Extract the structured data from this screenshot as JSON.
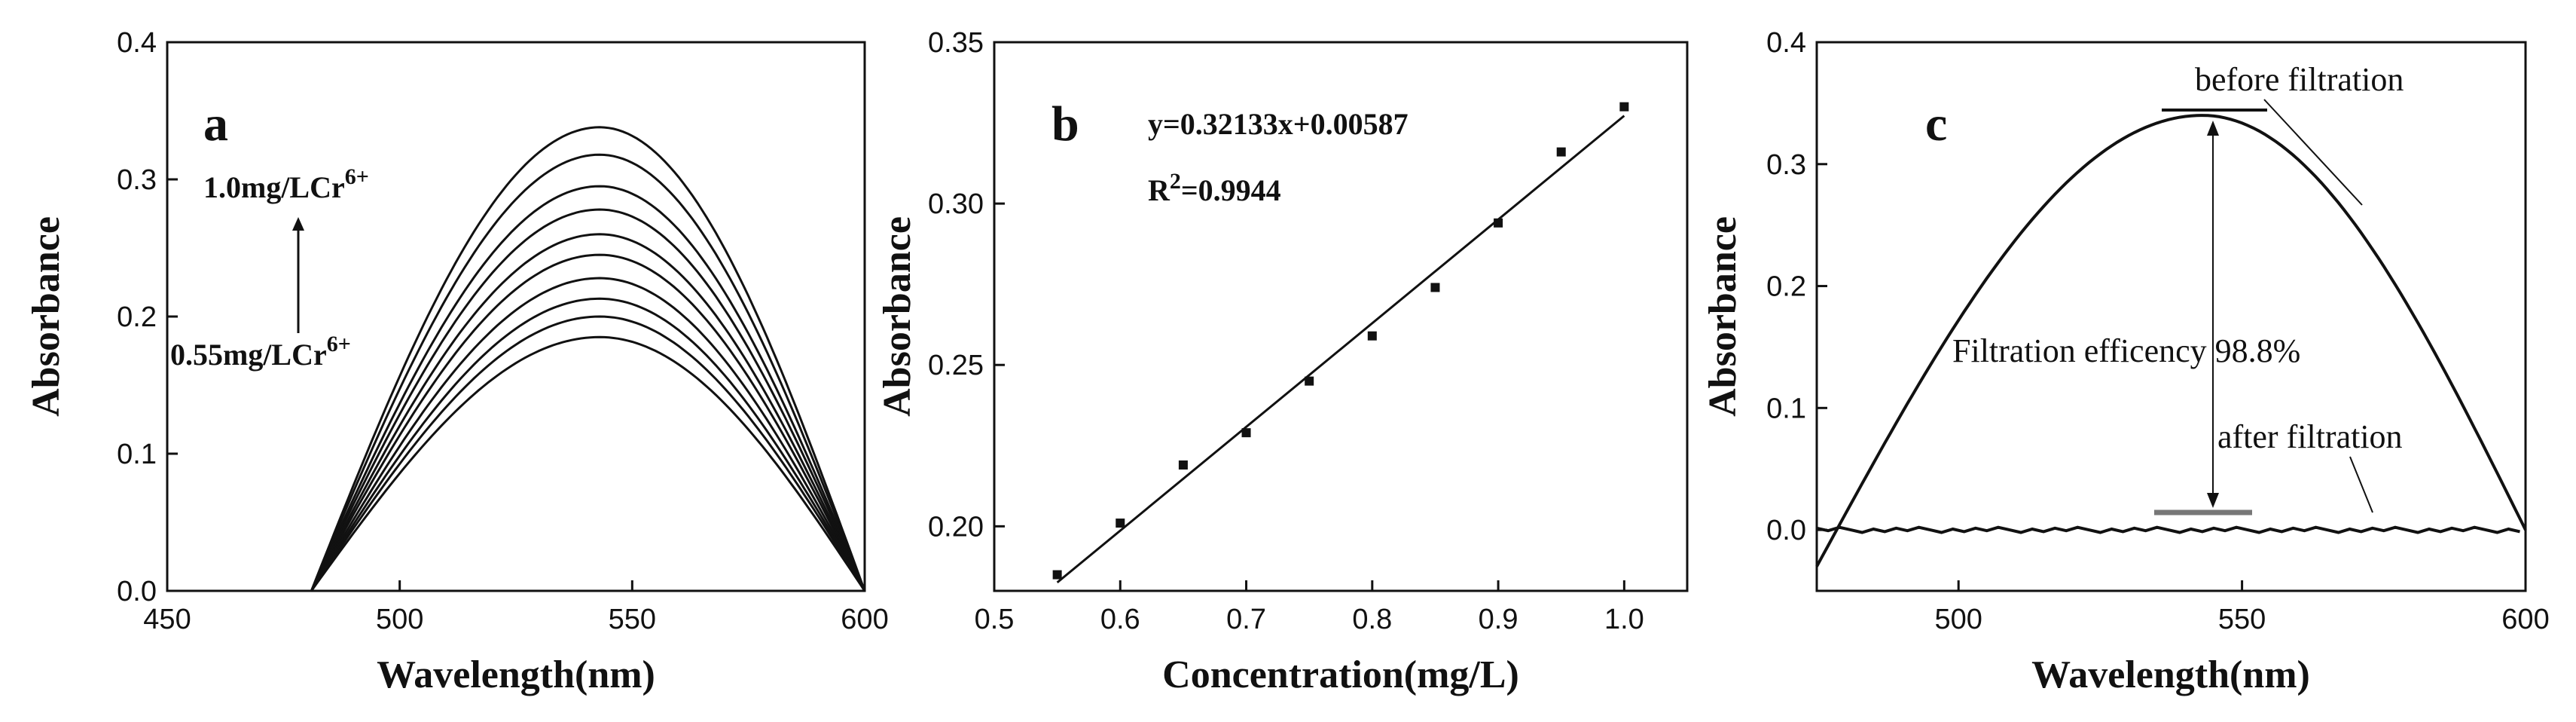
{
  "chart_data": [
    {
      "type": "line",
      "panel_label": "a",
      "xlabel": "Wavelength(nm)",
      "ylabel": "Absorbance",
      "xlim": [
        450,
        600
      ],
      "ylim": [
        0.0,
        0.4
      ],
      "x_ticks": [
        "450",
        "500",
        "550",
        "600"
      ],
      "y_ticks": [
        "0.0",
        "0.1",
        "0.2",
        "0.3",
        "0.4"
      ],
      "series_shape": {
        "start_nm": 481,
        "peak_nm": 543,
        "end_nm": 600
      },
      "peak_values": [
        0.185,
        0.2,
        0.213,
        0.228,
        0.245,
        0.26,
        0.278,
        0.295,
        0.318,
        0.338
      ],
      "annotations": {
        "top_label": "1.0mg/LCr",
        "top_sup": "6+",
        "bottom_label": "0.55mg/LCr",
        "bottom_sup": "6+"
      }
    },
    {
      "type": "scatter",
      "panel_label": "b",
      "xlabel": "Concentration(mg/L)",
      "ylabel": "Absorbance",
      "xlim": [
        0.5,
        1.05
      ],
      "ylim": [
        0.18,
        0.35
      ],
      "x_ticks": [
        "0.5",
        "0.6",
        "0.7",
        "0.8",
        "0.9",
        "1.0"
      ],
      "y_ticks": [
        "0.20",
        "0.25",
        "0.30",
        "0.35"
      ],
      "x": [
        0.55,
        0.6,
        0.65,
        0.7,
        0.75,
        0.8,
        0.85,
        0.9,
        0.95,
        1.0
      ],
      "y": [
        0.185,
        0.201,
        0.219,
        0.229,
        0.245,
        0.259,
        0.274,
        0.294,
        0.316,
        0.33
      ],
      "fit": {
        "slope": 0.32133,
        "intercept": 0.00587
      },
      "equation": "y=0.32133x+0.00587",
      "r2_prefix": "R",
      "r2_sup": "2",
      "r2_value": "=0.9944"
    },
    {
      "type": "line",
      "panel_label": "c",
      "xlabel": "Wavelength(nm)",
      "ylabel": "Absorbance",
      "xlim": [
        475,
        600
      ],
      "ylim": [
        -0.05,
        0.4
      ],
      "x_ticks": [
        "500",
        "550",
        "600"
      ],
      "y_ticks": [
        "0.0",
        "0.1",
        "0.2",
        "0.3",
        "0.4"
      ],
      "series": [
        {
          "name": "before filtration",
          "start": [
            475,
            -0.03
          ],
          "peak": [
            543,
            0.34
          ],
          "end": [
            600,
            0.0
          ]
        },
        {
          "name": "after filtration",
          "value": 0.0
        }
      ],
      "annotations": {
        "before": "before filtration",
        "after": "after filtration",
        "efficiency": "Filtration efficency 98.8%"
      }
    }
  ]
}
